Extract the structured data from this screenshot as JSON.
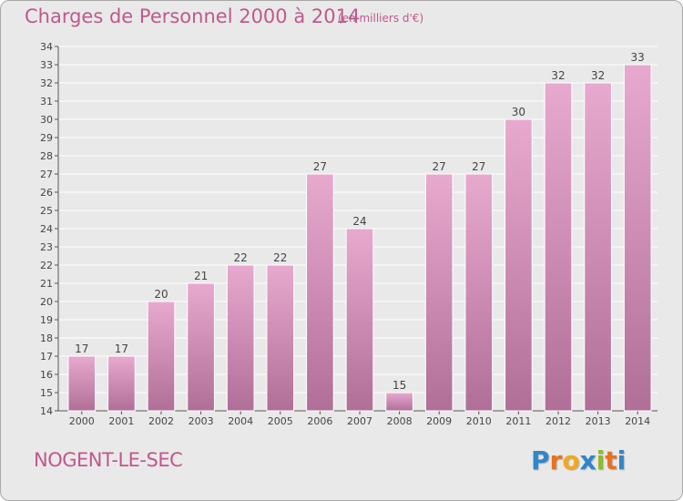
{
  "chart_data": {
    "type": "bar",
    "title": "Charges de Personnel 2000 à 2014",
    "subtitle": "(en milliers d'€)",
    "categories": [
      "2000",
      "2001",
      "2002",
      "2003",
      "2004",
      "2005",
      "2006",
      "2007",
      "2008",
      "2009",
      "2010",
      "2011",
      "2012",
      "2013",
      "2014"
    ],
    "values": [
      17,
      17,
      20,
      21,
      22,
      22,
      27,
      24,
      15,
      27,
      27,
      30,
      32,
      32,
      33
    ],
    "ylim": [
      14,
      34
    ],
    "yticks": [
      14,
      15,
      16,
      17,
      18,
      19,
      20,
      21,
      22,
      23,
      24,
      25,
      26,
      27,
      28,
      29,
      30,
      31,
      32,
      33,
      34
    ],
    "grid": true,
    "bar_color_top": "#e8a9cf",
    "bar_color_bottom": "#b06f97"
  },
  "footer": {
    "place": "NOGENT-LE-SEC"
  },
  "logo": {
    "letters": [
      {
        "char": "P",
        "color": "#2f86c8"
      },
      {
        "char": "r",
        "color": "#e8731f"
      },
      {
        "char": "o",
        "color": "#f2a81d"
      },
      {
        "char": "x",
        "color": "#2f86c8"
      },
      {
        "char": "i",
        "color": "#8dbb2a"
      },
      {
        "char": "t",
        "color": "#e8731f"
      },
      {
        "char": "i",
        "color": "#2f86c8"
      }
    ]
  }
}
